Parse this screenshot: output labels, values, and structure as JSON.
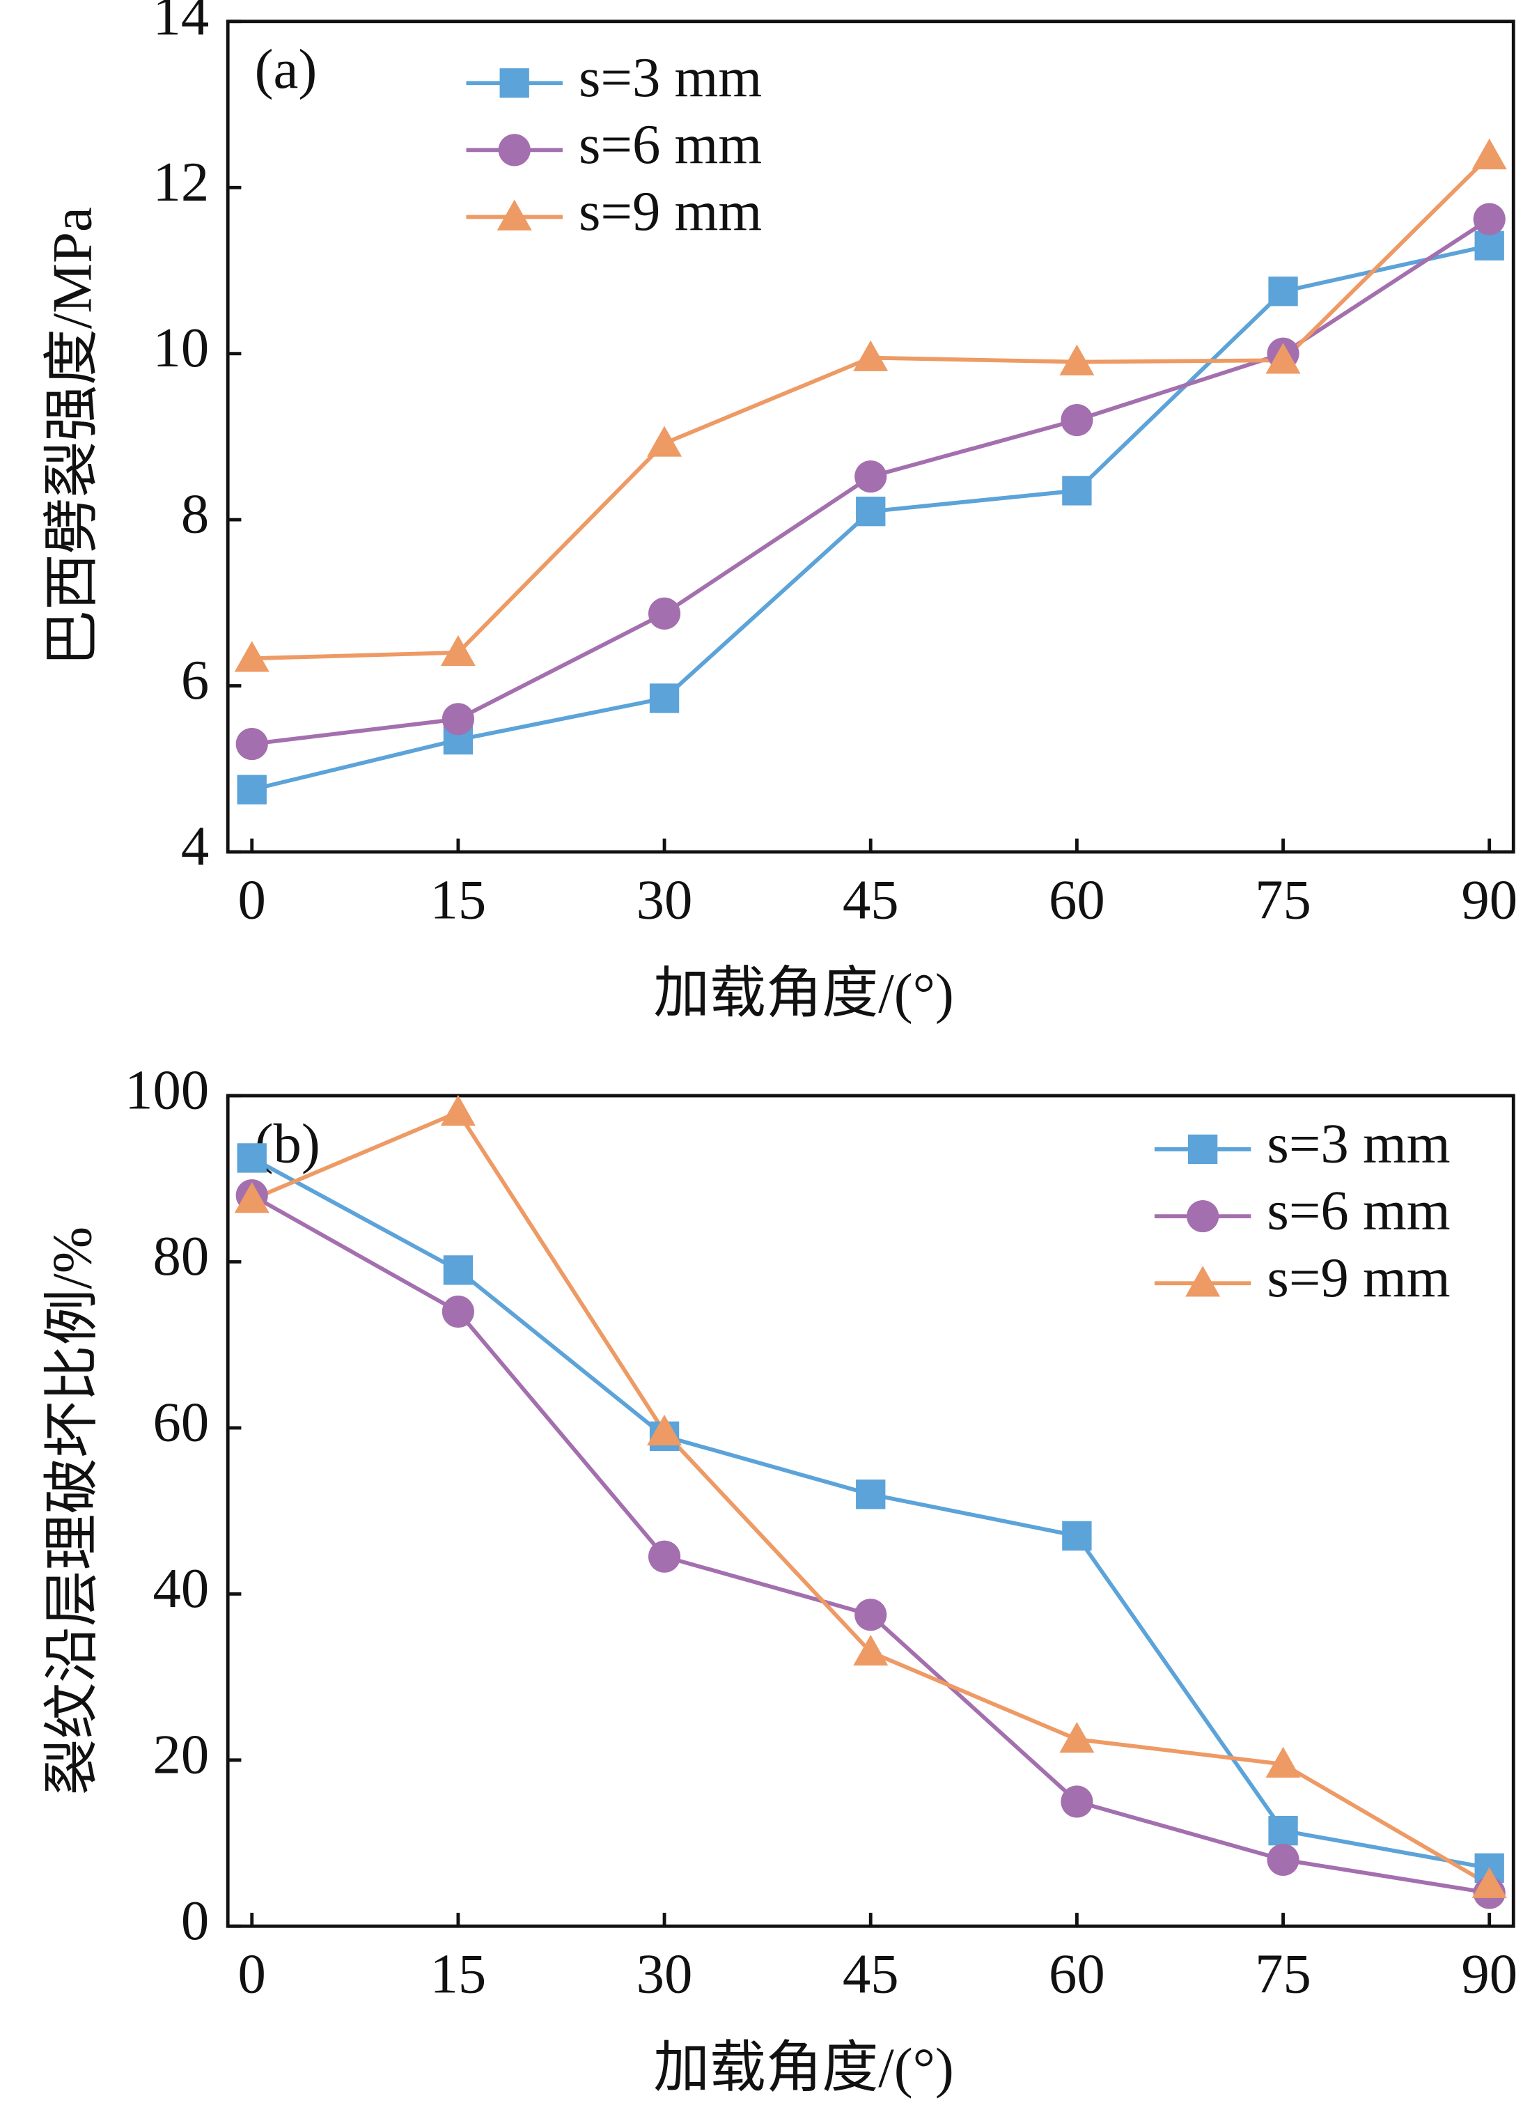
{
  "chart_data": [
    {
      "type": "line",
      "annotation": "(a)",
      "x_label": "加载角度/(°)",
      "y_label": "巴西劈裂强度/MPa",
      "x": [
        0,
        15,
        30,
        45,
        60,
        75,
        90
      ],
      "xlim": [
        -1.75,
        91.75
      ],
      "xticks": [
        0,
        15,
        30,
        45,
        60,
        75,
        90
      ],
      "ylim": [
        4,
        14
      ],
      "yticks": [
        4,
        6,
        8,
        10,
        12,
        14
      ],
      "legend": "upper left",
      "series": [
        {
          "name": "s=3 mm",
          "color": "#5ba3d9",
          "marker": "square",
          "values": [
            4.75,
            5.35,
            5.85,
            8.1,
            8.35,
            10.75,
            11.3
          ]
        },
        {
          "name": "s=6 mm",
          "color": "#a46fae",
          "marker": "circle",
          "values": [
            5.3,
            5.6,
            6.87,
            8.52,
            9.2,
            10.0,
            11.62
          ]
        },
        {
          "name": "s=9 mm",
          "color": "#ee9a64",
          "marker": "triangle",
          "values": [
            6.33,
            6.4,
            8.92,
            9.95,
            9.9,
            9.92,
            12.38
          ]
        }
      ]
    },
    {
      "type": "line",
      "annotation": "(b)",
      "x_label": "加载角度/(°)",
      "y_label": "裂纹沿层理破坏比例/%",
      "x": [
        0,
        15,
        30,
        45,
        60,
        75,
        90
      ],
      "xlim": [
        -1.75,
        91.75
      ],
      "xticks": [
        0,
        15,
        30,
        45,
        60,
        75,
        90
      ],
      "ylim": [
        0,
        100
      ],
      "yticks": [
        0,
        20,
        40,
        60,
        80,
        100
      ],
      "legend": "upper right",
      "series": [
        {
          "name": "s=3 mm",
          "color": "#5ba3d9",
          "marker": "square",
          "values": [
            92.5,
            79,
            59,
            52,
            47,
            11.5,
            7
          ]
        },
        {
          "name": "s=6 mm",
          "color": "#a46fae",
          "marker": "circle",
          "values": [
            88,
            74,
            44.5,
            37.5,
            15,
            8,
            4
          ]
        },
        {
          "name": "s=9 mm",
          "color": "#ee9a64",
          "marker": "triangle",
          "values": [
            87.5,
            98,
            59.5,
            33,
            22.5,
            19.5,
            5
          ]
        }
      ]
    }
  ]
}
